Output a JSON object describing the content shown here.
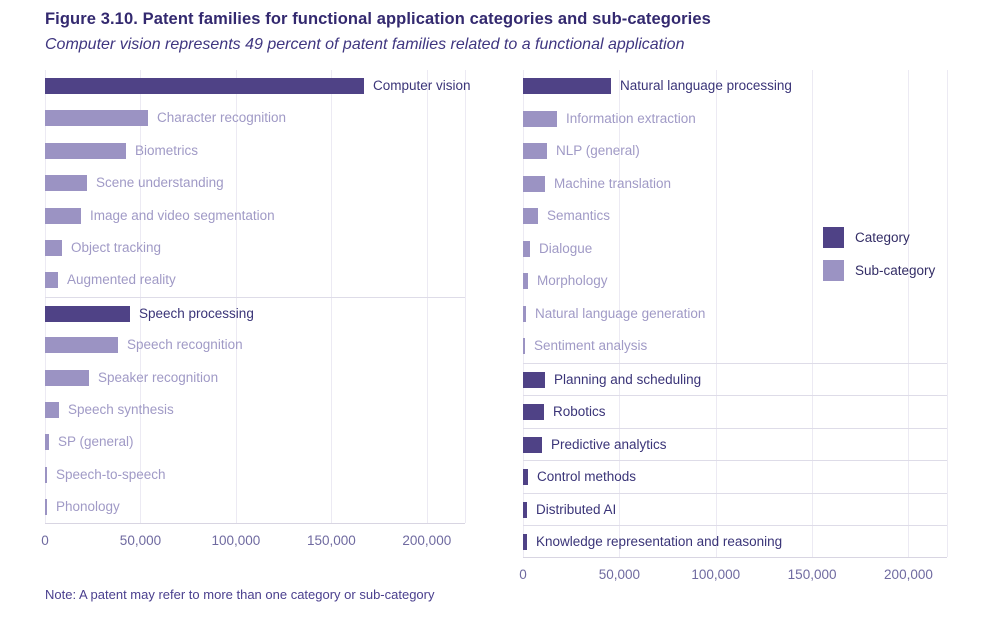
{
  "header": {
    "figure_title": "Figure 3.10. Patent families for functional application categories and sub-categories",
    "subtitle": "Computer vision represents 49 percent of patent families related to a functional application"
  },
  "note": "Note: A patent may refer to more than one category or sub-category",
  "legend": {
    "items": [
      {
        "label": "Category",
        "swatch": "category"
      },
      {
        "label": "Sub-category",
        "swatch": "subcategory"
      }
    ]
  },
  "colors": {
    "category_bar": "#4F4286",
    "subcategory_bar": "#9B93C3",
    "category_label_text": "#3A3478",
    "subcategory_label_text": "#A09AC6",
    "grid_line": "#ECEAF3",
    "separator_line": "#DEDCE8",
    "axis_line": "#D8D5E2",
    "tick_text": "#6F6AA0"
  },
  "chart_data": [
    {
      "type": "bar",
      "orientation": "horizontal",
      "panel": "left",
      "grid": true,
      "xlim": [
        0,
        220000
      ],
      "x_ticks": [
        {
          "value": 0,
          "label": "0"
        },
        {
          "value": 50000,
          "label": "50,000"
        },
        {
          "value": 100000,
          "label": "100,000"
        },
        {
          "value": 150000,
          "label": "150,000"
        },
        {
          "value": 200000,
          "label": "200,000"
        }
      ],
      "rows": [
        {
          "label": "Computer vision",
          "value": 167000,
          "kind": "category",
          "separator_before": false
        },
        {
          "label": "Character recognition",
          "value": 54000,
          "kind": "subcategory",
          "separator_before": false
        },
        {
          "label": "Biometrics",
          "value": 42500,
          "kind": "subcategory",
          "separator_before": false
        },
        {
          "label": "Scene understanding",
          "value": 22000,
          "kind": "subcategory",
          "separator_before": false
        },
        {
          "label": "Image and video segmentation",
          "value": 19000,
          "kind": "subcategory",
          "separator_before": false
        },
        {
          "label": "Object tracking",
          "value": 8800,
          "kind": "subcategory",
          "separator_before": false
        },
        {
          "label": "Augmented reality",
          "value": 7000,
          "kind": "subcategory",
          "separator_before": false
        },
        {
          "label": "Speech processing",
          "value": 44700,
          "kind": "category",
          "separator_before": true
        },
        {
          "label": "Speech recognition",
          "value": 38000,
          "kind": "subcategory",
          "separator_before": false
        },
        {
          "label": "Speaker recognition",
          "value": 23000,
          "kind": "subcategory",
          "separator_before": false
        },
        {
          "label": "Speech synthesis",
          "value": 7500,
          "kind": "subcategory",
          "separator_before": false
        },
        {
          "label": "SP (general)",
          "value": 2000,
          "kind": "subcategory",
          "separator_before": false
        },
        {
          "label": "Speech-to-speech",
          "value": 1100,
          "kind": "subcategory",
          "separator_before": false
        },
        {
          "label": "Phonology",
          "value": 1000,
          "kind": "subcategory",
          "separator_before": false
        }
      ]
    },
    {
      "type": "bar",
      "orientation": "horizontal",
      "panel": "right",
      "grid": true,
      "xlim": [
        0,
        220000
      ],
      "x_ticks": [
        {
          "value": 0,
          "label": "0"
        },
        {
          "value": 50000,
          "label": "50,000"
        },
        {
          "value": 100000,
          "label": "100,000"
        },
        {
          "value": 150000,
          "label": "150,000"
        },
        {
          "value": 200000,
          "label": "200,000"
        }
      ],
      "rows": [
        {
          "label": "Natural language processing",
          "value": 45800,
          "kind": "category",
          "separator_before": false
        },
        {
          "label": "Information extraction",
          "value": 17500,
          "kind": "subcategory",
          "separator_before": false
        },
        {
          "label": "NLP (general)",
          "value": 12500,
          "kind": "subcategory",
          "separator_before": false
        },
        {
          "label": "Machine translation",
          "value": 11200,
          "kind": "subcategory",
          "separator_before": false
        },
        {
          "label": "Semantics",
          "value": 7600,
          "kind": "subcategory",
          "separator_before": false
        },
        {
          "label": "Dialogue",
          "value": 3500,
          "kind": "subcategory",
          "separator_before": false
        },
        {
          "label": "Morphology",
          "value": 2600,
          "kind": "subcategory",
          "separator_before": false
        },
        {
          "label": "Natural language generation",
          "value": 1300,
          "kind": "subcategory",
          "separator_before": false
        },
        {
          "label": "Sentiment analysis",
          "value": 1100,
          "kind": "subcategory",
          "separator_before": false
        },
        {
          "label": "Planning and scheduling",
          "value": 11300,
          "kind": "category",
          "separator_before": true
        },
        {
          "label": "Robotics",
          "value": 11000,
          "kind": "category",
          "separator_before": true
        },
        {
          "label": "Predictive analytics",
          "value": 9600,
          "kind": "category",
          "separator_before": true
        },
        {
          "label": "Control methods",
          "value": 2600,
          "kind": "category",
          "separator_before": true
        },
        {
          "label": "Distributed AI",
          "value": 2300,
          "kind": "category",
          "separator_before": true
        },
        {
          "label": "Knowledge representation and reasoning",
          "value": 1900,
          "kind": "category",
          "separator_before": true
        }
      ]
    }
  ]
}
